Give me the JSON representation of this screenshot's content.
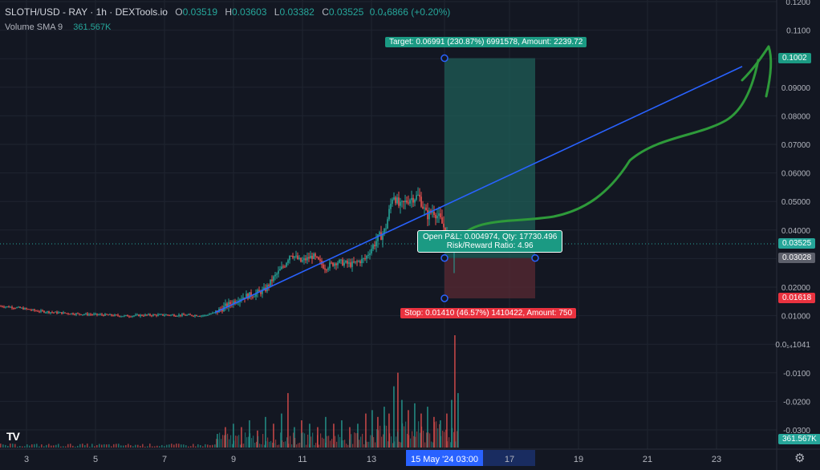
{
  "legend": {
    "symbol": "SLOTH/USD - RAY · 1h · DEXTools.io",
    "open_label": "O",
    "open": "0.03519",
    "high_label": "H",
    "high": "0.03603",
    "low_label": "L",
    "low": "0.03382",
    "close_label": "C",
    "close": "0.03525",
    "change": "0.0₄6866 (+0.20%)",
    "volume_label": "Volume SMA 9",
    "volume_value": "361.567K"
  },
  "position": {
    "target_label": "Target: 0.06991 (230.87%) 6991578, Amount: 2239.72",
    "pnl_label": "Open P&L: 0.004974, Qty: 17730.496",
    "rr_label": "Risk/Reward Ratio: 4.96",
    "stop_label": "Stop: 0.01410 (46.57%) 1410422, Amount: 750"
  },
  "price_badges": {
    "target": "0.1002",
    "current": "0.03525",
    "entry": "0.03028",
    "stop": "0.01618",
    "volume": "361.567K"
  },
  "colors": {
    "background": "#131722",
    "up": "#26a69a",
    "down": "#ef5350",
    "trendline": "#2962ff",
    "drawing": "#2e9a3a",
    "target_zone": "#1f5e57",
    "stop_zone": "#5a2a33"
  },
  "chart_data": {
    "type": "candlestick",
    "y_ticks": [
      "0.1200",
      "0.1100",
      "0.1000",
      "0.09000",
      "0.08000",
      "0.07000",
      "0.06000",
      "0.05000",
      "0.04000",
      "0.03000",
      "0.02000",
      "0.01000",
      "0.0₁₄1041",
      "-0.0100",
      "-0.0200",
      "-0.0300"
    ],
    "x_ticks": [
      "3",
      "5",
      "7",
      "9",
      "11",
      "13",
      "15 May '24  03:00",
      "17",
      "19",
      "21",
      "23"
    ],
    "ylim": [
      -0.035,
      0.122
    ],
    "y_log": false,
    "grid": true,
    "price_path": [
      [
        0,
        0.0135
      ],
      [
        25,
        0.0128
      ],
      [
        45,
        0.0118
      ],
      [
        70,
        0.0112
      ],
      [
        100,
        0.0107
      ],
      [
        130,
        0.0104
      ],
      [
        155,
        0.01
      ],
      [
        180,
        0.0103
      ],
      [
        205,
        0.0104
      ],
      [
        230,
        0.0103
      ],
      [
        255,
        0.0102
      ],
      [
        268,
        0.0112
      ],
      [
        285,
        0.014
      ],
      [
        300,
        0.0165
      ],
      [
        315,
        0.0175
      ],
      [
        330,
        0.019
      ],
      [
        340,
        0.023
      ],
      [
        355,
        0.028
      ],
      [
        362,
        0.032
      ],
      [
        375,
        0.029
      ],
      [
        390,
        0.031
      ],
      [
        405,
        0.027
      ],
      [
        420,
        0.029
      ],
      [
        438,
        0.028
      ],
      [
        455,
        0.03
      ],
      [
        468,
        0.036
      ],
      [
        480,
        0.04
      ],
      [
        490,
        0.053
      ],
      [
        498,
        0.048
      ],
      [
        510,
        0.051
      ],
      [
        522,
        0.052
      ],
      [
        532,
        0.045
      ],
      [
        540,
        0.047
      ],
      [
        548,
        0.044
      ],
      [
        555,
        0.04
      ],
      [
        562,
        0.0345
      ],
      [
        568,
        0.0352
      ]
    ],
    "volume_bars": [
      [
        270,
        0.004
      ],
      [
        280,
        0.006
      ],
      [
        290,
        0.007
      ],
      [
        300,
        0.006
      ],
      [
        310,
        0.008
      ],
      [
        320,
        0.005
      ],
      [
        330,
        0.009
      ],
      [
        340,
        0.007
      ],
      [
        350,
        0.01
      ],
      [
        358,
        0.016
      ],
      [
        366,
        0.006
      ],
      [
        375,
        0.008
      ],
      [
        385,
        0.007
      ],
      [
        395,
        0.006
      ],
      [
        405,
        0.009
      ],
      [
        415,
        0.007
      ],
      [
        425,
        0.008
      ],
      [
        435,
        0.006
      ],
      [
        445,
        0.007
      ],
      [
        455,
        0.01
      ],
      [
        463,
        0.011
      ],
      [
        470,
        0.009
      ],
      [
        478,
        0.012
      ],
      [
        484,
        0.01
      ],
      [
        490,
        0.018
      ],
      [
        495,
        0.022
      ],
      [
        500,
        0.014
      ],
      [
        508,
        0.011
      ],
      [
        516,
        0.013
      ],
      [
        524,
        0.01
      ],
      [
        532,
        0.012
      ],
      [
        540,
        0.009
      ],
      [
        548,
        0.008
      ],
      [
        556,
        0.01
      ],
      [
        562,
        0.014
      ],
      [
        566,
        0.033
      ],
      [
        570,
        0.016
      ]
    ],
    "trendline": [
      [
        268,
        0.0112
      ],
      [
        925,
        0.0973
      ]
    ],
    "position": {
      "target": 0.1002,
      "entry": 0.03028,
      "stop": 0.01618,
      "current": 0.03525,
      "x_start": 554,
      "x_end": 667
    }
  }
}
